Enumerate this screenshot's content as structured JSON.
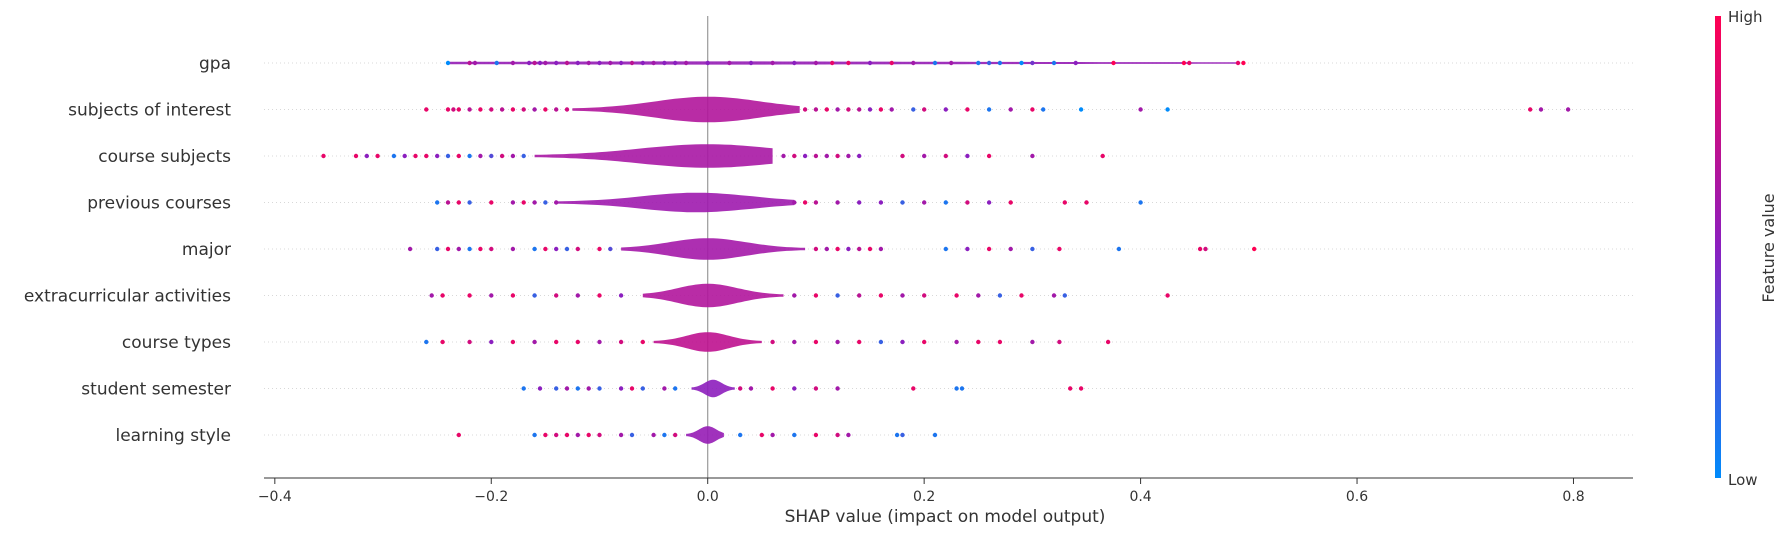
{
  "chart_data": {
    "type": "violin",
    "title": "",
    "xlabel": "SHAP value (impact on model output)",
    "xlim": [
      -0.41,
      0.855
    ],
    "xticks": [
      -0.4,
      -0.2,
      0.0,
      0.2,
      0.4,
      0.6,
      0.8
    ],
    "xtick_labels": [
      "−0.4",
      "−0.2",
      "0.0",
      "0.2",
      "0.4",
      "0.6",
      "0.8"
    ],
    "colorbar": {
      "label": "Feature value",
      "high_label": "High",
      "low_label": "Low",
      "high_color": "#ff0052",
      "low_color": "#008bfb"
    },
    "features": [
      {
        "name": "gpa",
        "violin": {
          "min": -0.24,
          "max": 0.49,
          "peak": 0.0,
          "width": 0.04
        },
        "points": [
          [
            -0.24,
            0.0
          ],
          [
            -0.22,
            0.7
          ],
          [
            -0.215,
            0.6
          ],
          [
            -0.195,
            0.1
          ],
          [
            -0.18,
            0.6
          ],
          [
            -0.165,
            0.5
          ],
          [
            -0.16,
            0.7
          ],
          [
            -0.155,
            0.5
          ],
          [
            -0.15,
            0.6
          ],
          [
            -0.14,
            0.5
          ],
          [
            -0.13,
            0.7
          ],
          [
            -0.12,
            0.5
          ],
          [
            -0.11,
            0.6
          ],
          [
            -0.1,
            0.5
          ],
          [
            -0.09,
            0.6
          ],
          [
            -0.08,
            0.5
          ],
          [
            -0.07,
            0.7
          ],
          [
            -0.06,
            0.5
          ],
          [
            -0.05,
            0.6
          ],
          [
            -0.04,
            0.5
          ],
          [
            -0.03,
            0.5
          ],
          [
            -0.02,
            0.6
          ],
          [
            0.0,
            0.5
          ],
          [
            0.02,
            0.6
          ],
          [
            0.04,
            0.5
          ],
          [
            0.06,
            0.6
          ],
          [
            0.08,
            0.5
          ],
          [
            0.1,
            0.6
          ],
          [
            0.115,
            0.9
          ],
          [
            0.13,
            0.9
          ],
          [
            0.15,
            0.5
          ],
          [
            0.17,
            0.9
          ],
          [
            0.19,
            0.6
          ],
          [
            0.21,
            0.1
          ],
          [
            0.225,
            0.6
          ],
          [
            0.25,
            0.1
          ],
          [
            0.26,
            0.2
          ],
          [
            0.27,
            0.1
          ],
          [
            0.29,
            0.0
          ],
          [
            0.3,
            0.4
          ],
          [
            0.32,
            0.1
          ],
          [
            0.34,
            0.5
          ],
          [
            0.375,
            1.0
          ],
          [
            0.44,
            1.0
          ],
          [
            0.445,
            0.9
          ],
          [
            0.49,
            0.9
          ],
          [
            0.495,
            1.0
          ]
        ]
      },
      {
        "name": "subjects of interest",
        "violin": {
          "min": -0.125,
          "max": 0.085,
          "peak": 0.0,
          "width": 0.6
        },
        "points": [
          [
            -0.26,
            0.9
          ],
          [
            -0.24,
            0.9
          ],
          [
            -0.235,
            0.8
          ],
          [
            -0.23,
            0.9
          ],
          [
            -0.22,
            0.7
          ],
          [
            -0.21,
            0.9
          ],
          [
            -0.2,
            0.8
          ],
          [
            -0.19,
            0.7
          ],
          [
            -0.18,
            0.9
          ],
          [
            -0.17,
            0.8
          ],
          [
            -0.16,
            0.6
          ],
          [
            -0.15,
            0.9
          ],
          [
            -0.14,
            0.7
          ],
          [
            -0.13,
            0.8
          ],
          [
            0.09,
            0.8
          ],
          [
            0.1,
            0.7
          ],
          [
            0.11,
            0.9
          ],
          [
            0.12,
            0.6
          ],
          [
            0.13,
            0.8
          ],
          [
            0.14,
            0.7
          ],
          [
            0.15,
            0.5
          ],
          [
            0.16,
            0.9
          ],
          [
            0.17,
            0.6
          ],
          [
            0.19,
            0.2
          ],
          [
            0.2,
            0.8
          ],
          [
            0.22,
            0.5
          ],
          [
            0.24,
            0.9
          ],
          [
            0.26,
            0.1
          ],
          [
            0.28,
            0.6
          ],
          [
            0.3,
            0.9
          ],
          [
            0.31,
            0.1
          ],
          [
            0.345,
            0.0
          ],
          [
            0.4,
            0.6
          ],
          [
            0.425,
            0.0
          ],
          [
            0.76,
            0.9
          ],
          [
            0.77,
            0.6
          ],
          [
            0.795,
            0.6
          ]
        ]
      },
      {
        "name": "course subjects",
        "violin": {
          "min": -0.16,
          "max": 0.06,
          "peak": 0.0,
          "width": 0.55
        },
        "points": [
          [
            -0.355,
            0.9
          ],
          [
            -0.325,
            0.9
          ],
          [
            -0.315,
            0.5
          ],
          [
            -0.305,
            0.9
          ],
          [
            -0.29,
            0.1
          ],
          [
            -0.28,
            0.5
          ],
          [
            -0.27,
            0.9
          ],
          [
            -0.26,
            0.9
          ],
          [
            -0.25,
            0.5
          ],
          [
            -0.24,
            0.2
          ],
          [
            -0.23,
            0.9
          ],
          [
            -0.22,
            0.1
          ],
          [
            -0.21,
            0.6
          ],
          [
            -0.2,
            0.3
          ],
          [
            -0.19,
            0.8
          ],
          [
            -0.18,
            0.6
          ],
          [
            -0.17,
            0.2
          ],
          [
            0.07,
            0.6
          ],
          [
            0.08,
            0.8
          ],
          [
            0.09,
            0.5
          ],
          [
            0.1,
            0.7
          ],
          [
            0.11,
            0.6
          ],
          [
            0.12,
            0.8
          ],
          [
            0.13,
            0.6
          ],
          [
            0.14,
            0.5
          ],
          [
            0.18,
            0.8
          ],
          [
            0.2,
            0.6
          ],
          [
            0.22,
            0.8
          ],
          [
            0.24,
            0.5
          ],
          [
            0.26,
            0.9
          ],
          [
            0.3,
            0.6
          ],
          [
            0.365,
            0.9
          ]
        ]
      },
      {
        "name": "previous courses",
        "violin": {
          "min": -0.14,
          "max": 0.08,
          "peak": -0.01,
          "width": 0.45
        },
        "points": [
          [
            -0.25,
            0.1
          ],
          [
            -0.24,
            0.7
          ],
          [
            -0.23,
            0.9
          ],
          [
            -0.22,
            0.2
          ],
          [
            -0.2,
            0.9
          ],
          [
            -0.18,
            0.6
          ],
          [
            -0.17,
            0.9
          ],
          [
            -0.16,
            0.6
          ],
          [
            -0.15,
            0.2
          ],
          [
            -0.14,
            0.6
          ],
          [
            0.08,
            0.6
          ],
          [
            0.09,
            0.9
          ],
          [
            0.1,
            0.7
          ],
          [
            0.12,
            0.6
          ],
          [
            0.14,
            0.5
          ],
          [
            0.16,
            0.5
          ],
          [
            0.18,
            0.2
          ],
          [
            0.2,
            0.6
          ],
          [
            0.22,
            0.1
          ],
          [
            0.24,
            0.8
          ],
          [
            0.26,
            0.5
          ],
          [
            0.28,
            0.9
          ],
          [
            0.33,
            0.9
          ],
          [
            0.35,
            0.9
          ],
          [
            0.4,
            0.1
          ]
        ]
      },
      {
        "name": "major",
        "violin": {
          "min": -0.08,
          "max": 0.09,
          "peak": 0.0,
          "width": 0.5
        },
        "points": [
          [
            -0.275,
            0.6
          ],
          [
            -0.25,
            0.2
          ],
          [
            -0.24,
            0.9
          ],
          [
            -0.23,
            0.6
          ],
          [
            -0.22,
            0.1
          ],
          [
            -0.21,
            0.9
          ],
          [
            -0.2,
            0.8
          ],
          [
            -0.18,
            0.6
          ],
          [
            -0.16,
            0.1
          ],
          [
            -0.15,
            0.9
          ],
          [
            -0.14,
            0.5
          ],
          [
            -0.13,
            0.2
          ],
          [
            -0.12,
            0.8
          ],
          [
            -0.1,
            0.9
          ],
          [
            -0.09,
            0.3
          ],
          [
            0.1,
            0.8
          ],
          [
            0.11,
            0.6
          ],
          [
            0.12,
            0.9
          ],
          [
            0.13,
            0.5
          ],
          [
            0.14,
            0.7
          ],
          [
            0.15,
            0.9
          ],
          [
            0.16,
            0.6
          ],
          [
            0.22,
            0.1
          ],
          [
            0.24,
            0.5
          ],
          [
            0.26,
            0.9
          ],
          [
            0.28,
            0.6
          ],
          [
            0.3,
            0.2
          ],
          [
            0.325,
            0.9
          ],
          [
            0.38,
            0.1
          ],
          [
            0.455,
            0.9
          ],
          [
            0.46,
            0.8
          ],
          [
            0.505,
            1.0
          ]
        ]
      },
      {
        "name": "extracurricular activities",
        "violin": {
          "min": -0.06,
          "max": 0.07,
          "peak": 0.0,
          "width": 0.55
        },
        "points": [
          [
            -0.255,
            0.6
          ],
          [
            -0.245,
            0.9
          ],
          [
            -0.22,
            0.9
          ],
          [
            -0.2,
            0.6
          ],
          [
            -0.18,
            0.9
          ],
          [
            -0.16,
            0.2
          ],
          [
            -0.14,
            0.8
          ],
          [
            -0.12,
            0.6
          ],
          [
            -0.1,
            0.9
          ],
          [
            -0.08,
            0.5
          ],
          [
            0.08,
            0.6
          ],
          [
            0.1,
            0.9
          ],
          [
            0.12,
            0.2
          ],
          [
            0.14,
            0.7
          ],
          [
            0.16,
            0.9
          ],
          [
            0.18,
            0.6
          ],
          [
            0.2,
            0.8
          ],
          [
            0.23,
            0.9
          ],
          [
            0.25,
            0.6
          ],
          [
            0.27,
            0.2
          ],
          [
            0.29,
            0.9
          ],
          [
            0.32,
            0.6
          ],
          [
            0.33,
            0.2
          ],
          [
            0.425,
            0.9
          ]
        ]
      },
      {
        "name": "course types",
        "violin": {
          "min": -0.05,
          "max": 0.05,
          "peak": 0.0,
          "width": 0.45
        },
        "points": [
          [
            -0.26,
            0.1
          ],
          [
            -0.245,
            0.9
          ],
          [
            -0.22,
            0.8
          ],
          [
            -0.2,
            0.5
          ],
          [
            -0.18,
            0.9
          ],
          [
            -0.16,
            0.6
          ],
          [
            -0.14,
            0.9
          ],
          [
            -0.12,
            0.9
          ],
          [
            -0.1,
            0.6
          ],
          [
            -0.08,
            0.8
          ],
          [
            -0.06,
            0.9
          ],
          [
            0.06,
            0.8
          ],
          [
            0.08,
            0.6
          ],
          [
            0.1,
            0.9
          ],
          [
            0.12,
            0.6
          ],
          [
            0.14,
            0.9
          ],
          [
            0.16,
            0.2
          ],
          [
            0.18,
            0.5
          ],
          [
            0.2,
            0.9
          ],
          [
            0.23,
            0.6
          ],
          [
            0.25,
            0.9
          ],
          [
            0.27,
            0.9
          ],
          [
            0.3,
            0.6
          ],
          [
            0.325,
            0.8
          ],
          [
            0.37,
            0.9
          ]
        ]
      },
      {
        "name": "student semester",
        "violin": {
          "min": -0.015,
          "max": 0.025,
          "peak": 0.005,
          "width": 0.4
        },
        "points": [
          [
            -0.17,
            0.1
          ],
          [
            -0.155,
            0.5
          ],
          [
            -0.14,
            0.2
          ],
          [
            -0.13,
            0.6
          ],
          [
            -0.12,
            0.1
          ],
          [
            -0.11,
            0.6
          ],
          [
            -0.1,
            0.2
          ],
          [
            -0.08,
            0.5
          ],
          [
            -0.07,
            0.9
          ],
          [
            -0.06,
            0.2
          ],
          [
            -0.04,
            0.6
          ],
          [
            -0.03,
            0.1
          ],
          [
            0.03,
            0.8
          ],
          [
            0.04,
            0.6
          ],
          [
            0.06,
            0.9
          ],
          [
            0.08,
            0.5
          ],
          [
            0.1,
            0.8
          ],
          [
            0.12,
            0.6
          ],
          [
            0.19,
            0.9
          ],
          [
            0.23,
            0.1
          ],
          [
            0.235,
            0.1
          ],
          [
            0.335,
            0.9
          ],
          [
            0.345,
            0.9
          ]
        ]
      },
      {
        "name": "learning style",
        "violin": {
          "min": -0.02,
          "max": 0.015,
          "peak": 0.0,
          "width": 0.4
        },
        "points": [
          [
            -0.23,
            0.9
          ],
          [
            -0.16,
            0.1
          ],
          [
            -0.15,
            0.9
          ],
          [
            -0.14,
            0.8
          ],
          [
            -0.13,
            0.9
          ],
          [
            -0.12,
            0.6
          ],
          [
            -0.11,
            0.9
          ],
          [
            -0.1,
            0.8
          ],
          [
            -0.08,
            0.6
          ],
          [
            -0.07,
            0.2
          ],
          [
            -0.05,
            0.6
          ],
          [
            -0.04,
            0.1
          ],
          [
            -0.03,
            0.8
          ],
          [
            0.03,
            0.1
          ],
          [
            0.05,
            0.9
          ],
          [
            0.06,
            0.6
          ],
          [
            0.08,
            0.1
          ],
          [
            0.1,
            0.9
          ],
          [
            0.12,
            0.8
          ],
          [
            0.13,
            0.6
          ],
          [
            0.175,
            0.1
          ],
          [
            0.18,
            0.2
          ],
          [
            0.21,
            0.1
          ]
        ]
      }
    ]
  }
}
